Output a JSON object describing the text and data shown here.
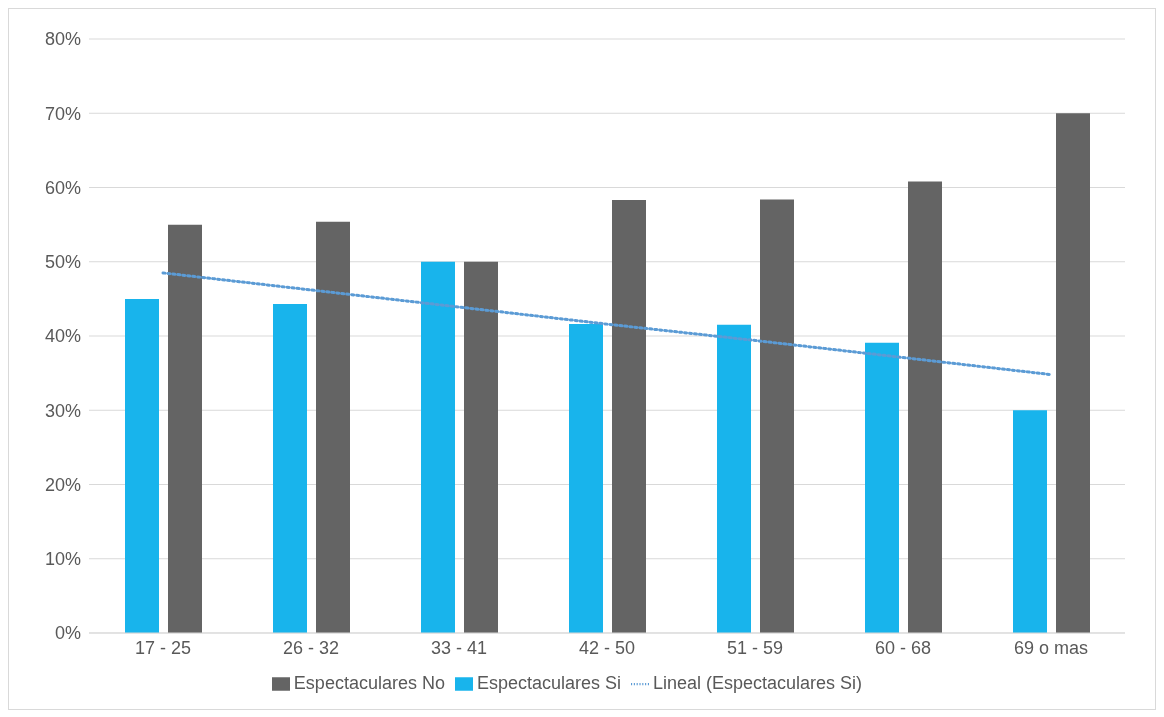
{
  "chart_data": {
    "type": "bar",
    "categories": [
      "17 - 25",
      "26 - 32",
      "33 - 41",
      "42 - 50",
      "51 - 59",
      "60 - 68",
      "69 o mas"
    ],
    "series": [
      {
        "name": "Espectaculares Si",
        "color": "#18b4ec",
        "values": [
          45,
          44.3,
          50,
          41.6,
          41.5,
          39.1,
          30
        ]
      },
      {
        "name": "Espectaculares No",
        "color": "#646464",
        "values": [
          55,
          55.4,
          50,
          58.3,
          58.4,
          60.8,
          70
        ]
      },
      {
        "name": "Lineal (Espectaculares Si)",
        "type": "line",
        "color": "#5b9bd5",
        "line_style": "dotted",
        "marker": "none",
        "values": [
          48.5,
          46.2,
          43.9,
          41.6,
          39.4,
          37.1,
          34.8
        ]
      }
    ],
    "ylim": [
      0,
      80
    ],
    "yticks": [
      {
        "value": 0,
        "label": "0%"
      },
      {
        "value": 10,
        "label": "10%"
      },
      {
        "value": 20,
        "label": "20%"
      },
      {
        "value": 30,
        "label": "30%"
      },
      {
        "value": 40,
        "label": "40%"
      },
      {
        "value": 50,
        "label": "50%"
      },
      {
        "value": 60,
        "label": "60%"
      },
      {
        "value": 70,
        "label": "70%"
      },
      {
        "value": 80,
        "label": "80%"
      }
    ],
    "grid": "y",
    "legend": "bottom"
  }
}
